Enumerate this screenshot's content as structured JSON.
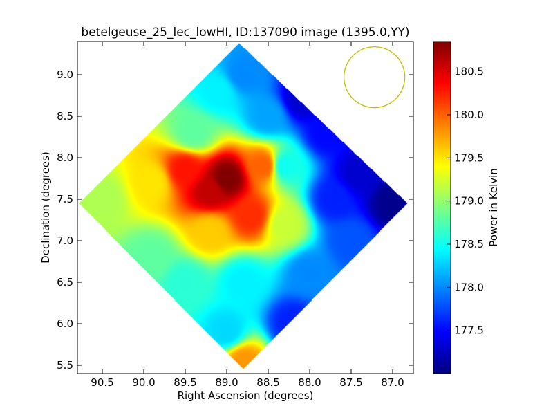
{
  "chart_data": {
    "type": "heatmap",
    "title": "betelgeuse_25_lec_lowHI, ID:137090 image (1395.0,YY)",
    "xlabel": "Right Ascension (degrees)",
    "ylabel": "Declination (degrees)",
    "colorbar_label": "Power in Kelvin",
    "xlim": [
      90.8,
      86.75
    ],
    "ylim": [
      5.4,
      9.4
    ],
    "x_ticks": [
      90.5,
      90.0,
      89.5,
      89.0,
      88.5,
      88.0,
      87.5,
      87.0
    ],
    "x_tick_labels": [
      "90.5",
      "90.0",
      "89.5",
      "89.0",
      "88.5",
      "88.0",
      "87.5",
      "87.0"
    ],
    "y_ticks": [
      5.5,
      6.0,
      6.5,
      7.0,
      7.5,
      8.0,
      8.5,
      9.0
    ],
    "y_tick_labels": [
      "5.5",
      "6.0",
      "6.5",
      "7.0",
      "7.5",
      "8.0",
      "8.5",
      "9.0"
    ],
    "colorbar_range": [
      177.0,
      180.85
    ],
    "colorbar_ticks": [
      177.5,
      178.0,
      178.5,
      179.0,
      179.5,
      180.0,
      180.5
    ],
    "colorbar_tick_labels": [
      "177.5",
      "178.0",
      "178.5",
      "179.0",
      "179.5",
      "180.0",
      "180.5"
    ],
    "colormap": "jet",
    "footprint_diamond": [
      [
        88.85,
        9.38
      ],
      [
        86.82,
        7.45
      ],
      [
        88.8,
        5.45
      ],
      [
        90.78,
        7.45
      ]
    ],
    "beam_circle": {
      "center_ra": 87.22,
      "center_dec": 8.97,
      "color": "#bfbf00"
    },
    "field_samples": [
      {
        "ra": 89.0,
        "dec": 7.75,
        "value": 180.85
      },
      {
        "ra": 89.2,
        "dec": 7.6,
        "value": 180.6
      },
      {
        "ra": 89.5,
        "dec": 7.85,
        "value": 180.3
      },
      {
        "ra": 88.7,
        "dec": 7.3,
        "value": 180.2
      },
      {
        "ra": 88.55,
        "dec": 7.9,
        "value": 180.0
      },
      {
        "ra": 89.9,
        "dec": 7.7,
        "value": 179.5
      },
      {
        "ra": 90.5,
        "dec": 7.5,
        "value": 179.1
      },
      {
        "ra": 89.2,
        "dec": 7.1,
        "value": 179.6
      },
      {
        "ra": 88.3,
        "dec": 7.2,
        "value": 179.2
      },
      {
        "ra": 88.3,
        "dec": 7.9,
        "value": 178.5
      },
      {
        "ra": 89.4,
        "dec": 8.3,
        "value": 178.8
      },
      {
        "ra": 89.9,
        "dec": 6.8,
        "value": 178.8
      },
      {
        "ra": 89.5,
        "dec": 6.5,
        "value": 178.6
      },
      {
        "ra": 88.8,
        "dec": 6.5,
        "value": 178.4
      },
      {
        "ra": 89.0,
        "dec": 5.9,
        "value": 178.3
      },
      {
        "ra": 88.8,
        "dec": 5.55,
        "value": 179.8
      },
      {
        "ra": 88.2,
        "dec": 6.0,
        "value": 177.6
      },
      {
        "ra": 88.0,
        "dec": 6.6,
        "value": 178.0
      },
      {
        "ra": 87.5,
        "dec": 7.0,
        "value": 177.8
      },
      {
        "ra": 87.7,
        "dec": 7.5,
        "value": 177.6
      },
      {
        "ra": 87.0,
        "dec": 7.45,
        "value": 177.05
      },
      {
        "ra": 87.4,
        "dec": 7.8,
        "value": 177.3
      },
      {
        "ra": 88.1,
        "dec": 8.7,
        "value": 177.3
      },
      {
        "ra": 87.8,
        "dec": 8.3,
        "value": 177.5
      },
      {
        "ra": 88.8,
        "dec": 9.0,
        "value": 178.0
      },
      {
        "ra": 88.5,
        "dec": 8.5,
        "value": 178.1
      },
      {
        "ra": 89.1,
        "dec": 8.8,
        "value": 178.4
      }
    ]
  }
}
